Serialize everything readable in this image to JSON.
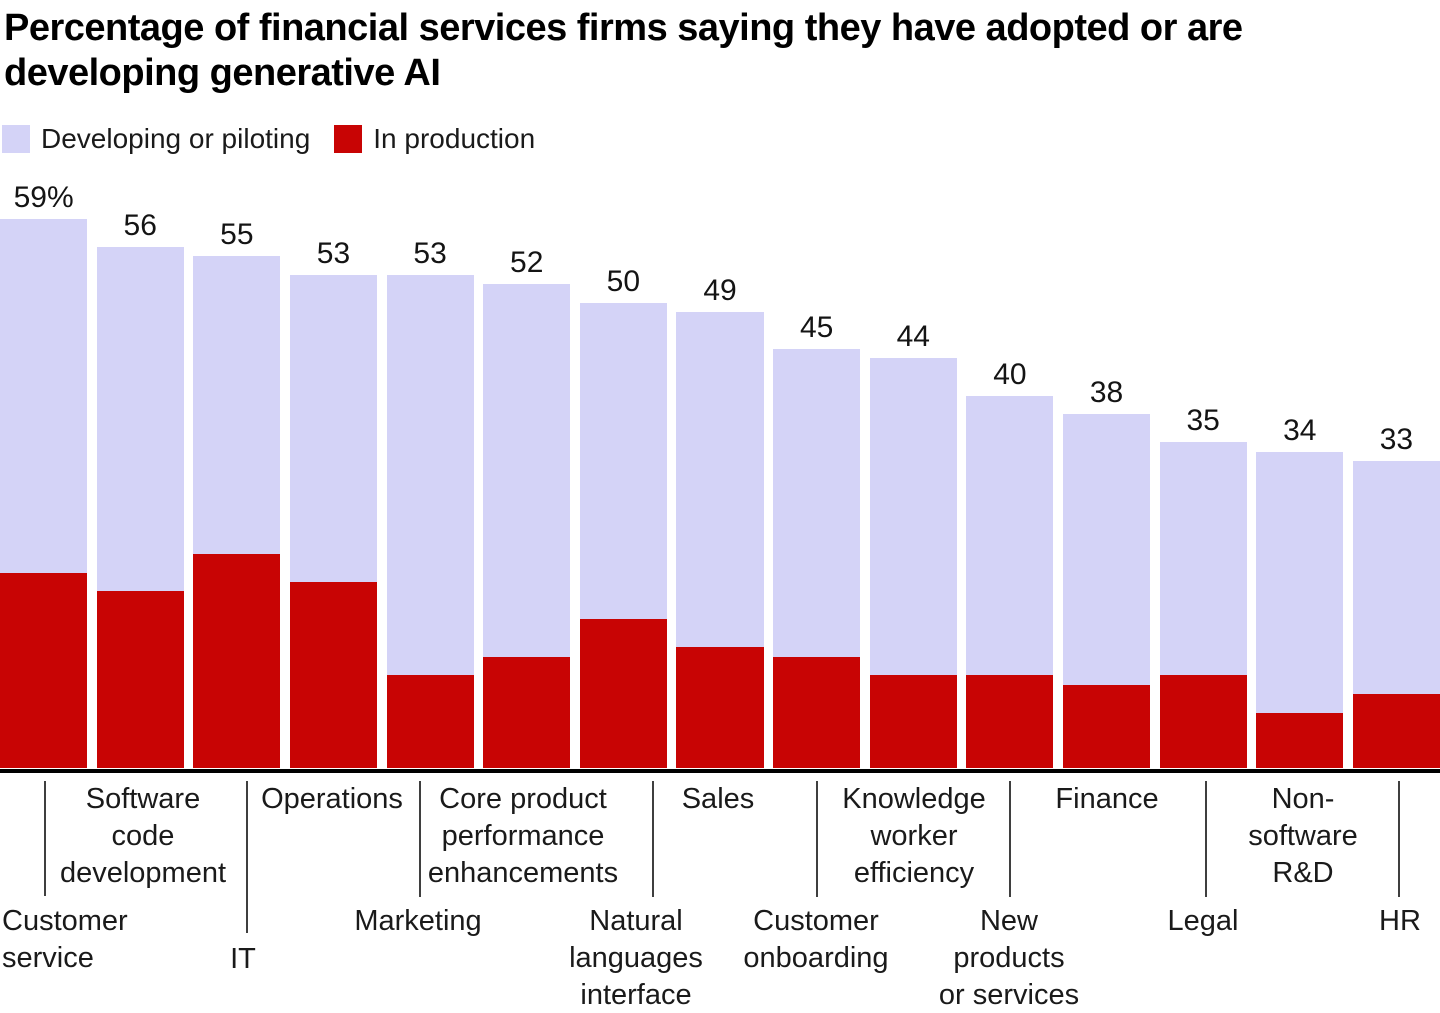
{
  "title": {
    "text": "Percentage of financial services firms saying they have adopted or are developing generative AI",
    "lines": [
      "Percentage of financial services firms saying they have adopted or are",
      "developing generative AI"
    ]
  },
  "legend": {
    "items": [
      {
        "label": "Developing or piloting",
        "color": "#d4d3f7"
      },
      {
        "label": "In production",
        "color": "#c80404"
      }
    ]
  },
  "colors": {
    "developing": "#d4d3f7",
    "production": "#c80404",
    "axis_line": "#000000",
    "tick": "#3f3f3f",
    "text": "#1a1a1a",
    "background": "#ffffff"
  },
  "chart_data": {
    "type": "bar",
    "subtype": "stacked-vertical",
    "title": "Percentage of financial services firms saying they have adopted or are developing generative AI",
    "xlabel": "",
    "ylabel": "",
    "ylim": [
      0,
      62
    ],
    "grid": false,
    "legend_position": "top-left",
    "value_labels_show_total": true,
    "categories": [
      "Customer service",
      "Software code development",
      "IT",
      "Operations",
      "Marketing",
      "Core product performance enhancements",
      "Natural languages interface",
      "Sales",
      "Customer onboarding",
      "Knowledge worker efficiency",
      "New products or services",
      "Finance",
      "Legal",
      "Non-software R&D",
      "HR"
    ],
    "totals": [
      59,
      56,
      55,
      53,
      53,
      52,
      50,
      49,
      45,
      44,
      40,
      38,
      35,
      34,
      33
    ],
    "total_labels": [
      "59%",
      "56",
      "55",
      "53",
      "53",
      "52",
      "50",
      "49",
      "45",
      "44",
      "40",
      "38",
      "35",
      "34",
      "33"
    ],
    "series": [
      {
        "name": "Developing or piloting",
        "color": "#d4d3f7",
        "values": [
          38,
          37,
          32,
          33,
          43,
          40,
          34,
          36,
          33,
          34,
          30,
          29,
          25,
          28,
          25
        ]
      },
      {
        "name": "In production",
        "color": "#c80404",
        "values": [
          21,
          19,
          23,
          20,
          10,
          12,
          16,
          13,
          12,
          10,
          10,
          9,
          10,
          6,
          8
        ],
        "note": "values estimated from bar pixel heights; not labeled in chart"
      }
    ],
    "axis_labels": [
      {
        "category": "Customer service",
        "lines": [
          "Customer",
          "service"
        ],
        "row": 2
      },
      {
        "category": "Software code development",
        "lines": [
          "Software",
          "code",
          "development"
        ],
        "row": 1
      },
      {
        "category": "IT",
        "lines": [
          "IT"
        ],
        "row": 2
      },
      {
        "category": "Operations",
        "lines": [
          "Operations"
        ],
        "row": 1
      },
      {
        "category": "Marketing",
        "lines": [
          "Marketing"
        ],
        "row": 2
      },
      {
        "category": "Core product performance enhancements",
        "lines": [
          "Core product",
          "performance",
          "enhancements"
        ],
        "row": 1
      },
      {
        "category": "Natural languages interface",
        "lines": [
          "Natural",
          "languages",
          "interface"
        ],
        "row": 2
      },
      {
        "category": "Sales",
        "lines": [
          "Sales"
        ],
        "row": 1
      },
      {
        "category": "Customer onboarding",
        "lines": [
          "Customer",
          "onboarding"
        ],
        "row": 2
      },
      {
        "category": "Knowledge worker efficiency",
        "lines": [
          "Knowledge",
          "worker",
          "efficiency"
        ],
        "row": 1
      },
      {
        "category": "New products or services",
        "lines": [
          "New",
          "products",
          "or services"
        ],
        "row": 2
      },
      {
        "category": "Finance",
        "lines": [
          "Finance"
        ],
        "row": 1
      },
      {
        "category": "Legal",
        "lines": [
          "Legal"
        ],
        "row": 2
      },
      {
        "category": "Non-software R&D",
        "lines": [
          "Non-",
          "software",
          "R&D"
        ],
        "row": 1
      },
      {
        "category": "HR",
        "lines": [
          "HR"
        ],
        "row": 2
      }
    ]
  }
}
